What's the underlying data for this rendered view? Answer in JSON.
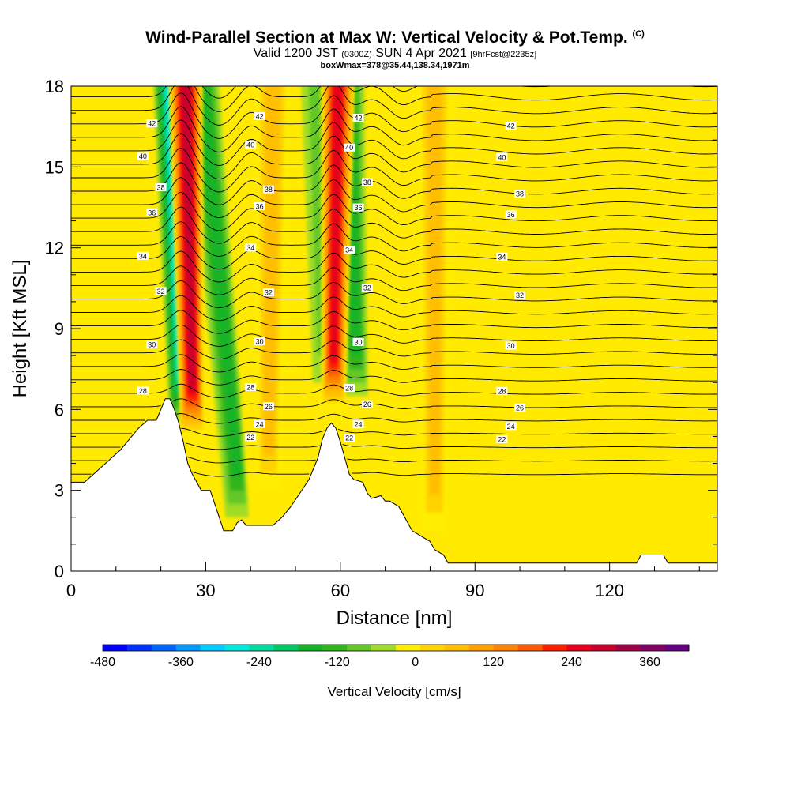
{
  "header": {
    "title": "Wind-Parallel Section at Max W: Vertical Velocity & Pot.Temp.",
    "title_mark": "(C)",
    "valid_prefix": "Valid 1200 JST",
    "valid_utc": "(0300Z)",
    "valid_date": "SUN 4 Apr 2021",
    "forecast": "[9hrFcst@2235z]",
    "box_info": "boxWmax=378@35.44,138.34,1971m"
  },
  "chart_data": {
    "type": "heatmap",
    "xlabel": "Distance [nm]",
    "ylabel": "Height [Kft MSL]",
    "xlim": [
      0,
      144
    ],
    "ylim": [
      0,
      18
    ],
    "x_ticks": [
      "0",
      "30",
      "60",
      "90",
      "120"
    ],
    "y_ticks": [
      "0",
      "3",
      "6",
      "9",
      "12",
      "15",
      "18"
    ],
    "colorbar": {
      "title": "Vertical Velocity [cm/s]",
      "min": -480,
      "max": 420,
      "step": 40,
      "tick_labels": [
        "-480",
        "-360",
        "-240",
        "-120",
        "0",
        "120",
        "240",
        "360"
      ],
      "colors": [
        "#0000ff",
        "#0033ff",
        "#0066ff",
        "#0099ff",
        "#00ccff",
        "#00e8e0",
        "#00dca0",
        "#00c864",
        "#14b428",
        "#32b41e",
        "#64c828",
        "#a0dc28",
        "#ffee00",
        "#ffd200",
        "#ffbe00",
        "#ffa000",
        "#ff8200",
        "#ff5a00",
        "#ff1e00",
        "#e6001e",
        "#c8002d",
        "#a00046",
        "#800064",
        "#640082"
      ]
    },
    "terrain_kft": [
      [
        0,
        3.3
      ],
      [
        3,
        3.3
      ],
      [
        5,
        3.6
      ],
      [
        7,
        3.9
      ],
      [
        9,
        4.2
      ],
      [
        11,
        4.5
      ],
      [
        13,
        4.9
      ],
      [
        15,
        5.3
      ],
      [
        17,
        5.6
      ],
      [
        19,
        5.6
      ],
      [
        20,
        6.0
      ],
      [
        21,
        6.4
      ],
      [
        22,
        6.4
      ],
      [
        23,
        6.0
      ],
      [
        24,
        5.5
      ],
      [
        25,
        4.8
      ],
      [
        26,
        4.0
      ],
      [
        27,
        3.6
      ],
      [
        28,
        3.3
      ],
      [
        29,
        3.0
      ],
      [
        31,
        3.0
      ],
      [
        32,
        2.5
      ],
      [
        33,
        2.0
      ],
      [
        34,
        1.5
      ],
      [
        36,
        1.5
      ],
      [
        37,
        1.8
      ],
      [
        38,
        1.9
      ],
      [
        39,
        1.7
      ],
      [
        40,
        1.7
      ],
      [
        43,
        1.7
      ],
      [
        45,
        1.7
      ],
      [
        47,
        2.0
      ],
      [
        49,
        2.4
      ],
      [
        51,
        2.9
      ],
      [
        53,
        3.4
      ],
      [
        55,
        4.2
      ],
      [
        56,
        4.9
      ],
      [
        57,
        5.3
      ],
      [
        58,
        5.5
      ],
      [
        59,
        5.3
      ],
      [
        60,
        4.8
      ],
      [
        61,
        4.2
      ],
      [
        62,
        3.6
      ],
      [
        63,
        3.4
      ],
      [
        65,
        3.3
      ],
      [
        66,
        2.9
      ],
      [
        67,
        2.7
      ],
      [
        69,
        2.8
      ],
      [
        70,
        2.6
      ],
      [
        71,
        2.6
      ],
      [
        72,
        2.5
      ],
      [
        73,
        2.4
      ],
      [
        74,
        2.1
      ],
      [
        75,
        1.8
      ],
      [
        76,
        1.5
      ],
      [
        78,
        1.3
      ],
      [
        80,
        1.1
      ],
      [
        81,
        0.8
      ],
      [
        83,
        0.6
      ],
      [
        84,
        0.3
      ],
      [
        88,
        0.3
      ],
      [
        96,
        0.3
      ],
      [
        110,
        0.3
      ],
      [
        126,
        0.3
      ],
      [
        127,
        0.6
      ],
      [
        132,
        0.6
      ],
      [
        133,
        0.3
      ],
      [
        144,
        0.3
      ]
    ],
    "updrafts": [
      {
        "x_top": 25.5,
        "x_bottom": 27.0,
        "y_bottom": 5.0,
        "w_max": 378
      },
      {
        "x_top": 59.5,
        "x_bottom": 58.5,
        "y_bottom": 6.0,
        "w_max": 300
      },
      {
        "x_top": 45,
        "x_bottom": 44,
        "y_bottom": 3.0,
        "w_max": 110
      },
      {
        "x_top": 81,
        "x_bottom": 81,
        "y_bottom": 1.5,
        "w_max": 110
      }
    ],
    "downdrafts": [
      {
        "x_top": 22.0,
        "x_bottom": 24.5,
        "y_bottom": 5.5,
        "w_min": -280
      },
      {
        "x_top": 29.0,
        "x_bottom": 37.0,
        "y_bottom": 2.0,
        "w_min": -160
      },
      {
        "x_top": 61.5,
        "x_bottom": 63.5,
        "y_bottom": 6.5,
        "w_min": -140
      },
      {
        "x_top": 55.0,
        "x_bottom": 56.5,
        "y_bottom": 7.0,
        "w_min": -80
      }
    ],
    "theta_contours": [
      {
        "label": "22",
        "base_y": 4.9
      },
      {
        "label": "24",
        "base_y": 5.4
      },
      {
        "label": "26",
        "base_y": 6.1
      },
      {
        "label": "28",
        "base_y": 6.7
      },
      {
        "label": "30",
        "base_y": 8.4
      },
      {
        "label": "32",
        "base_y": 10.3
      },
      {
        "label": "34",
        "base_y": 11.7
      },
      {
        "label": "36",
        "base_y": 13.3
      },
      {
        "label": "38",
        "base_y": 14.1
      },
      {
        "label": "40",
        "base_y": 15.4
      },
      {
        "label": "42",
        "base_y": 16.6
      }
    ]
  }
}
